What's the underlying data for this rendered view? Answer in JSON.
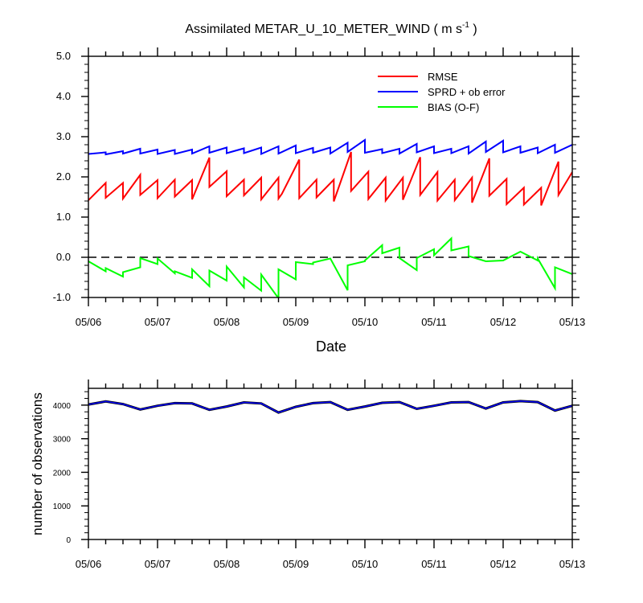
{
  "chart_data": [
    {
      "type": "line",
      "title": "Assimilated METAR_U_10_METER_WIND ( m s",
      "title_superscript": "-1",
      "title_close": " )",
      "xlabel": "Date",
      "ylabel": "",
      "xlim": [
        0,
        7
      ],
      "ylim": [
        -1.0,
        5.0
      ],
      "x_tick_labels": [
        "05/06",
        "05/07",
        "05/08",
        "05/09",
        "05/10",
        "05/11",
        "05/12",
        "05/13"
      ],
      "y_tick_labels": [
        "-1.0",
        "0.0",
        "1.0",
        "2.0",
        "3.0",
        "4.0",
        "5.0"
      ],
      "y_ticks": [
        -1,
        0,
        1,
        2,
        3,
        4,
        5
      ],
      "zero_line": true,
      "legend_position": "top-right",
      "series": [
        {
          "name": "RMSE",
          "color": "#ff0000",
          "points": [
            [
              0.0,
              1.42
            ],
            [
              0.25,
              1.85
            ],
            [
              0.25,
              1.48
            ],
            [
              0.5,
              1.85
            ],
            [
              0.5,
              1.46
            ],
            [
              0.75,
              2.05
            ],
            [
              0.75,
              1.55
            ],
            [
              1.0,
              1.92
            ],
            [
              1.0,
              1.47
            ],
            [
              1.25,
              1.93
            ],
            [
              1.25,
              1.51
            ],
            [
              1.5,
              1.92
            ],
            [
              1.5,
              1.44
            ],
            [
              1.75,
              2.48
            ],
            [
              1.75,
              1.75
            ],
            [
              2.0,
              2.14
            ],
            [
              2.0,
              1.52
            ],
            [
              2.25,
              1.93
            ],
            [
              2.25,
              1.54
            ],
            [
              2.5,
              1.98
            ],
            [
              2.5,
              1.44
            ],
            [
              2.75,
              1.98
            ],
            [
              2.75,
              1.46
            ],
            [
              2.8,
              1.58
            ],
            [
              3.05,
              2.43
            ],
            [
              3.05,
              1.47
            ],
            [
              3.3,
              1.93
            ],
            [
              3.3,
              1.49
            ],
            [
              3.55,
              1.93
            ],
            [
              3.55,
              1.39
            ],
            [
              3.8,
              2.62
            ],
            [
              3.8,
              1.65
            ],
            [
              4.05,
              2.13
            ],
            [
              4.05,
              1.45
            ],
            [
              4.3,
              1.98
            ],
            [
              4.3,
              1.41
            ],
            [
              4.55,
              1.98
            ],
            [
              4.55,
              1.43
            ],
            [
              4.8,
              2.49
            ],
            [
              4.8,
              1.55
            ],
            [
              5.05,
              2.12
            ],
            [
              5.05,
              1.41
            ],
            [
              5.3,
              1.93
            ],
            [
              5.3,
              1.42
            ],
            [
              5.55,
              1.98
            ],
            [
              5.55,
              1.36
            ],
            [
              5.8,
              2.46
            ],
            [
              5.8,
              1.53
            ],
            [
              6.05,
              1.95
            ],
            [
              6.05,
              1.32
            ],
            [
              6.3,
              1.73
            ],
            [
              6.3,
              1.31
            ],
            [
              6.55,
              1.73
            ],
            [
              6.55,
              1.29
            ],
            [
              6.8,
              2.38
            ],
            [
              6.8,
              1.55
            ],
            [
              7.0,
              2.12
            ]
          ]
        },
        {
          "name": "SPRD + ob error",
          "color": "#0000ff",
          "points": [
            [
              0.0,
              2.57
            ],
            [
              0.25,
              2.61
            ],
            [
              0.25,
              2.56
            ],
            [
              0.5,
              2.64
            ],
            [
              0.5,
              2.58
            ],
            [
              0.75,
              2.7
            ],
            [
              0.75,
              2.58
            ],
            [
              1.0,
              2.68
            ],
            [
              1.0,
              2.57
            ],
            [
              1.25,
              2.67
            ],
            [
              1.25,
              2.57
            ],
            [
              1.5,
              2.68
            ],
            [
              1.5,
              2.58
            ],
            [
              1.75,
              2.76
            ],
            [
              1.75,
              2.6
            ],
            [
              2.0,
              2.73
            ],
            [
              2.0,
              2.59
            ],
            [
              2.25,
              2.71
            ],
            [
              2.25,
              2.59
            ],
            [
              2.5,
              2.73
            ],
            [
              2.5,
              2.57
            ],
            [
              2.75,
              2.76
            ],
            [
              2.75,
              2.58
            ],
            [
              3.0,
              2.78
            ],
            [
              3.0,
              2.59
            ],
            [
              3.25,
              2.72
            ],
            [
              3.25,
              2.6
            ],
            [
              3.5,
              2.73
            ],
            [
              3.5,
              2.58
            ],
            [
              3.75,
              2.85
            ],
            [
              3.75,
              2.62
            ],
            [
              4.0,
              2.92
            ],
            [
              4.0,
              2.6
            ],
            [
              4.25,
              2.69
            ],
            [
              4.25,
              2.59
            ],
            [
              4.5,
              2.7
            ],
            [
              4.5,
              2.58
            ],
            [
              4.75,
              2.82
            ],
            [
              4.75,
              2.61
            ],
            [
              5.0,
              2.76
            ],
            [
              5.0,
              2.59
            ],
            [
              5.25,
              2.7
            ],
            [
              5.25,
              2.59
            ],
            [
              5.5,
              2.76
            ],
            [
              5.5,
              2.58
            ],
            [
              5.75,
              2.88
            ],
            [
              5.75,
              2.62
            ],
            [
              6.0,
              2.9
            ],
            [
              6.0,
              2.61
            ],
            [
              6.25,
              2.76
            ],
            [
              6.25,
              2.6
            ],
            [
              6.5,
              2.73
            ],
            [
              6.5,
              2.59
            ],
            [
              6.75,
              2.8
            ],
            [
              6.75,
              2.6
            ],
            [
              7.0,
              2.8
            ]
          ]
        },
        {
          "name": "BIAS (O-F)",
          "color": "#00ff00",
          "points": [
            [
              0.0,
              -0.1
            ],
            [
              0.25,
              -0.35
            ],
            [
              0.25,
              -0.27
            ],
            [
              0.5,
              -0.48
            ],
            [
              0.5,
              -0.37
            ],
            [
              0.75,
              -0.25
            ],
            [
              0.75,
              -0.02
            ],
            [
              1.0,
              -0.17
            ],
            [
              1.0,
              -0.03
            ],
            [
              1.25,
              -0.4
            ],
            [
              1.25,
              -0.35
            ],
            [
              1.5,
              -0.51
            ],
            [
              1.5,
              -0.3
            ],
            [
              1.75,
              -0.72
            ],
            [
              1.75,
              -0.33
            ],
            [
              2.0,
              -0.58
            ],
            [
              2.0,
              -0.23
            ],
            [
              2.25,
              -0.75
            ],
            [
              2.25,
              -0.5
            ],
            [
              2.5,
              -0.83
            ],
            [
              2.5,
              -0.43
            ],
            [
              2.75,
              -1.02
            ],
            [
              2.75,
              -0.3
            ],
            [
              3.0,
              -0.55
            ],
            [
              3.0,
              -0.12
            ],
            [
              3.25,
              -0.17
            ],
            [
              3.25,
              -0.13
            ],
            [
              3.5,
              -0.03
            ],
            [
              3.75,
              -0.82
            ],
            [
              3.75,
              -0.2
            ],
            [
              4.0,
              -0.1
            ],
            [
              4.0,
              -0.08
            ],
            [
              4.25,
              0.3
            ],
            [
              4.25,
              0.1
            ],
            [
              4.5,
              0.24
            ],
            [
              4.5,
              -0.02
            ],
            [
              4.75,
              -0.32
            ],
            [
              4.75,
              -0.02
            ],
            [
              5.0,
              0.2
            ],
            [
              5.0,
              0.05
            ],
            [
              5.25,
              0.47
            ],
            [
              5.25,
              0.17
            ],
            [
              5.5,
              0.27
            ],
            [
              5.5,
              0.03
            ],
            [
              5.75,
              -0.1
            ],
            [
              6.0,
              -0.08
            ],
            [
              6.25,
              0.14
            ],
            [
              6.5,
              -0.08
            ],
            [
              6.5,
              -0.03
            ],
            [
              6.75,
              -0.77
            ],
            [
              6.75,
              -0.25
            ],
            [
              7.0,
              -0.42
            ]
          ]
        }
      ]
    },
    {
      "type": "line",
      "title": "",
      "xlabel": "",
      "ylabel": "number of observations",
      "xlim": [
        0,
        7
      ],
      "ylim": [
        0,
        4500
      ],
      "x_tick_labels": [
        "05/06",
        "05/07",
        "05/08",
        "05/09",
        "05/10",
        "05/11",
        "05/12",
        "05/13"
      ],
      "y_tick_labels": [
        "0",
        "1000",
        "2000",
        "3000",
        "4000"
      ],
      "y_ticks": [
        0,
        1000,
        2000,
        3000,
        4000
      ],
      "series": [
        {
          "color": "#000000",
          "x": [
            0,
            0.25,
            0.5,
            0.75,
            1,
            1.25,
            1.5,
            1.75,
            2,
            2.25,
            2.5,
            2.75,
            3,
            3.25,
            3.5,
            3.75,
            4,
            4.25,
            4.5,
            4.75,
            5,
            5.25,
            5.5,
            5.75,
            6,
            6.25,
            6.5,
            6.75,
            7
          ],
          "values": [
            4020,
            4110,
            4030,
            3870,
            3980,
            4060,
            4050,
            3860,
            3960,
            4080,
            4050,
            3780,
            3950,
            4060,
            4090,
            3860,
            3960,
            4070,
            4090,
            3890,
            3980,
            4080,
            4090,
            3900,
            4080,
            4120,
            4090,
            3840,
            3980
          ]
        },
        {
          "color": "#0000ff",
          "x": [
            0,
            0.25,
            0.5,
            0.75,
            1,
            1.25,
            1.5,
            1.75,
            2,
            2.25,
            2.5,
            2.75,
            3,
            3.25,
            3.5,
            3.75,
            4,
            4.25,
            4.5,
            4.75,
            5,
            5.25,
            5.5,
            5.75,
            6,
            6.25,
            6.5,
            6.75,
            7
          ],
          "values": [
            4020,
            4110,
            4030,
            3870,
            3980,
            4060,
            4050,
            3860,
            3960,
            4080,
            4050,
            3780,
            3950,
            4060,
            4090,
            3860,
            3960,
            4070,
            4090,
            3890,
            3980,
            4080,
            4090,
            3900,
            4080,
            4120,
            4090,
            3840,
            3980
          ]
        }
      ]
    }
  ]
}
